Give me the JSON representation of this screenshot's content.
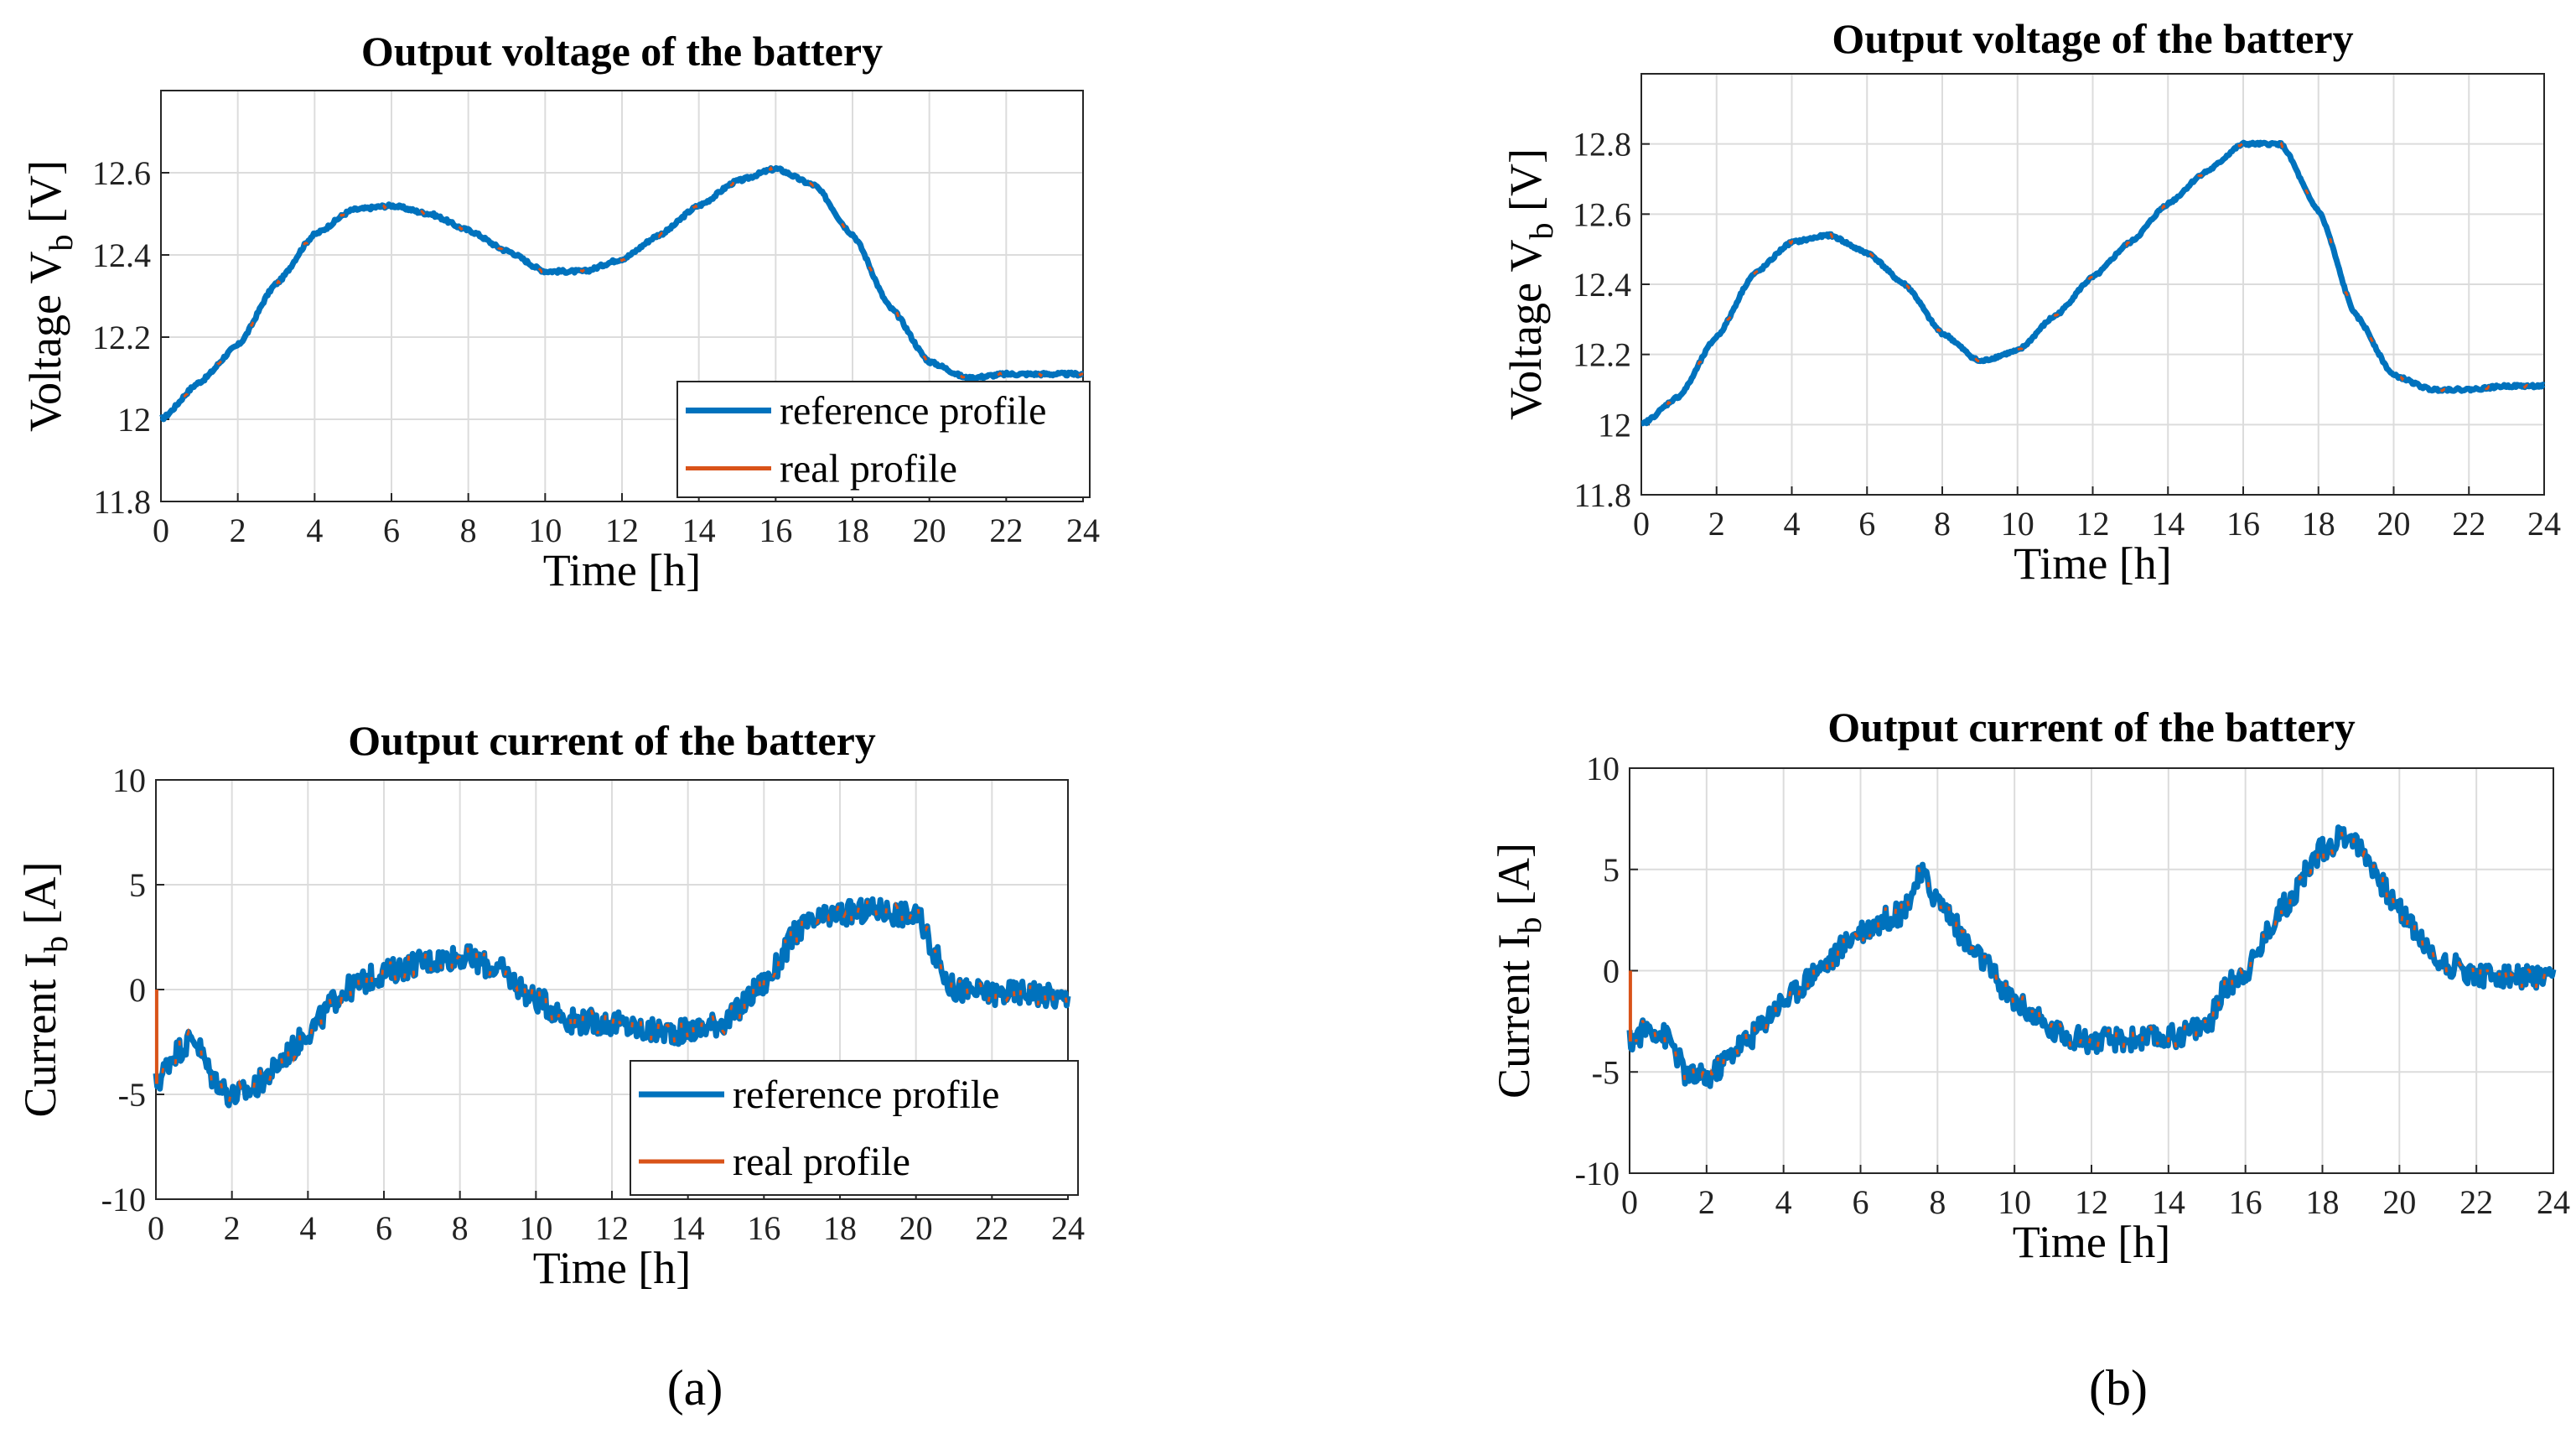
{
  "panels": {
    "a": {
      "label": "(a)"
    },
    "b": {
      "label": "(b)"
    }
  },
  "colors": {
    "reference": "#0072BD",
    "real": "#D95319"
  },
  "chart_data": [
    {
      "id": "a-voltage",
      "type": "line",
      "title": "Output voltage of the battery",
      "xlabel": "Time [h]",
      "ylabel_main": "Voltage V",
      "ylabel_sub": "b",
      "ylabel_unit": " [V]",
      "xlim": [
        0,
        24
      ],
      "ylim": [
        11.8,
        12.8
      ],
      "xticks": [
        0,
        2,
        4,
        6,
        8,
        10,
        12,
        14,
        16,
        18,
        20,
        22,
        24
      ],
      "xtick_labels": [
        "0",
        "2",
        "4",
        "6",
        "8",
        "10",
        "12",
        "14",
        "16",
        "18",
        "20",
        "22",
        "24"
      ],
      "yticks": [
        11.8,
        12,
        12.2,
        12.4,
        12.6
      ],
      "ytick_labels": [
        "11.8",
        "12",
        "12.2",
        "12.4",
        "12.6"
      ],
      "legend": {
        "entries": [
          "reference profile",
          "real profile"
        ],
        "location": "bottom-right"
      },
      "series": [
        {
          "name": "reference profile",
          "noise": 0.004,
          "x": [
            0,
            1,
            2,
            3,
            4,
            5,
            6,
            7,
            8,
            9,
            10,
            11,
            12,
            13,
            14,
            15,
            16,
            17,
            18,
            19,
            20,
            21,
            22,
            23,
            24
          ],
          "y": [
            12.0,
            12.09,
            12.18,
            12.33,
            12.45,
            12.51,
            12.52,
            12.5,
            12.46,
            12.41,
            12.36,
            12.36,
            12.39,
            12.45,
            12.52,
            12.58,
            12.61,
            12.57,
            12.45,
            12.27,
            12.14,
            12.1,
            12.11,
            12.11,
            12.11
          ]
        },
        {
          "name": "real profile",
          "dashed": true,
          "x": [
            0,
            1,
            2,
            3,
            4,
            5,
            6,
            7,
            8,
            9,
            10,
            11,
            12,
            13,
            14,
            15,
            16,
            17,
            18,
            19,
            20,
            21,
            22,
            23,
            24
          ],
          "y": [
            12.0,
            12.09,
            12.18,
            12.33,
            12.45,
            12.51,
            12.52,
            12.5,
            12.46,
            12.41,
            12.36,
            12.36,
            12.39,
            12.45,
            12.52,
            12.58,
            12.61,
            12.57,
            12.45,
            12.27,
            12.14,
            12.1,
            12.11,
            12.11,
            12.11
          ]
        }
      ]
    },
    {
      "id": "a-current",
      "type": "line",
      "title": "Output current of the battery",
      "xlabel": "Time [h]",
      "ylabel_main": "Current I",
      "ylabel_sub": "b",
      "ylabel_unit": " [A]",
      "xlim": [
        0,
        24
      ],
      "ylim": [
        -10,
        10
      ],
      "xticks": [
        0,
        2,
        4,
        6,
        8,
        10,
        12,
        14,
        16,
        18,
        20,
        22,
        24
      ],
      "xtick_labels": [
        "0",
        "2",
        "4",
        "6",
        "8",
        "10",
        "12",
        "14",
        "16",
        "18",
        "20",
        "22",
        "24"
      ],
      "yticks": [
        -10,
        -5,
        0,
        5,
        10
      ],
      "ytick_labels": [
        "-10",
        "-5",
        "0",
        "5",
        "10"
      ],
      "legend": {
        "entries": [
          "reference profile",
          "real profile"
        ],
        "location": "bottom-right"
      },
      "series": [
        {
          "name": "reference profile",
          "noise": 0.6,
          "x": [
            0,
            0.5,
            1,
            1.5,
            2,
            2.5,
            3,
            3.5,
            4,
            5,
            6,
            7,
            8,
            9,
            10,
            11,
            12,
            13,
            14,
            15,
            16,
            17,
            18,
            19,
            20,
            21,
            22,
            23,
            24
          ],
          "y": [
            -4.5,
            -3.0,
            -2.3,
            -4.2,
            -5.1,
            -4.8,
            -4.0,
            -3.0,
            -2.0,
            0.0,
            0.8,
            1.3,
            1.6,
            1.0,
            -0.5,
            -1.5,
            -1.6,
            -2.0,
            -2.0,
            -1.5,
            0.3,
            3.0,
            3.6,
            3.8,
            3.5,
            0.0,
            -0.2,
            -0.1,
            -0.5
          ]
        },
        {
          "name": "real profile",
          "dashed": true,
          "x": [
            0,
            0.5,
            1,
            1.5,
            2,
            2.5,
            3,
            3.5,
            4,
            5,
            6,
            7,
            8,
            9,
            10,
            11,
            12,
            13,
            14,
            15,
            16,
            17,
            18,
            19,
            20,
            21,
            22,
            23,
            24
          ],
          "y": [
            -4.5,
            -3.0,
            -2.3,
            -4.2,
            -5.1,
            -4.8,
            -4.0,
            -3.0,
            -2.0,
            0.0,
            0.8,
            1.3,
            1.6,
            1.0,
            -0.5,
            -1.5,
            -1.6,
            -2.0,
            -2.0,
            -1.5,
            0.3,
            3.0,
            3.6,
            3.8,
            3.5,
            0.0,
            -0.2,
            -0.1,
            -0.5
          ]
        }
      ]
    },
    {
      "id": "b-voltage",
      "type": "line",
      "title": "Output voltage of the battery",
      "xlabel": "Time [h]",
      "ylabel_main": "Voltage V",
      "ylabel_sub": "b",
      "ylabel_unit": " [V]",
      "xlim": [
        0,
        24
      ],
      "ylim": [
        11.8,
        13.0
      ],
      "xticks": [
        0,
        2,
        4,
        6,
        8,
        10,
        12,
        14,
        16,
        18,
        20,
        22,
        24
      ],
      "xtick_labels": [
        "0",
        "2",
        "4",
        "6",
        "8",
        "10",
        "12",
        "14",
        "16",
        "18",
        "20",
        "22",
        "24"
      ],
      "yticks": [
        11.8,
        12,
        12.2,
        12.4,
        12.6,
        12.8
      ],
      "ytick_labels": [
        "11.8",
        "12",
        "12.2",
        "12.4",
        "12.6",
        "12.8"
      ],
      "legend": null,
      "series": [
        {
          "name": "reference profile",
          "noise": 0.004,
          "x": [
            0,
            1,
            2,
            3,
            4,
            5,
            6,
            7,
            8,
            9,
            10,
            11,
            12,
            13,
            14,
            15,
            16,
            17,
            18,
            19,
            20,
            21,
            22,
            23,
            24
          ],
          "y": [
            12.0,
            12.08,
            12.25,
            12.43,
            12.52,
            12.54,
            12.49,
            12.4,
            12.26,
            12.18,
            12.21,
            12.31,
            12.42,
            12.52,
            12.63,
            12.72,
            12.8,
            12.8,
            12.61,
            12.31,
            12.14,
            12.1,
            12.1,
            12.11,
            12.11
          ]
        },
        {
          "name": "real profile",
          "dashed": true,
          "x": [
            0,
            1,
            2,
            3,
            4,
            5,
            6,
            7,
            8,
            9,
            10,
            11,
            12,
            13,
            14,
            15,
            16,
            17,
            18,
            19,
            20,
            21,
            22,
            23,
            24
          ],
          "y": [
            12.0,
            12.08,
            12.25,
            12.43,
            12.52,
            12.54,
            12.49,
            12.4,
            12.26,
            12.18,
            12.21,
            12.31,
            12.42,
            12.52,
            12.63,
            12.72,
            12.8,
            12.8,
            12.61,
            12.31,
            12.14,
            12.1,
            12.1,
            12.11,
            12.11
          ]
        }
      ]
    },
    {
      "id": "b-current",
      "type": "line",
      "title": "Output current of the battery",
      "xlabel": "Time [h]",
      "ylabel_main": "Current I",
      "ylabel_sub": "b",
      "ylabel_unit": " [A]",
      "xlim": [
        0,
        24
      ],
      "ylim": [
        -10,
        10
      ],
      "xticks": [
        0,
        2,
        4,
        6,
        8,
        10,
        12,
        14,
        16,
        18,
        20,
        22,
        24
      ],
      "xtick_labels": [
        "0",
        "2",
        "4",
        "6",
        "8",
        "10",
        "12",
        "14",
        "16",
        "18",
        "20",
        "22",
        "24"
      ],
      "yticks": [
        -10,
        -5,
        0,
        5,
        10
      ],
      "ytick_labels": [
        "-10",
        "-5",
        "0",
        "5",
        "10"
      ],
      "legend": null,
      "series": [
        {
          "name": "reference profile",
          "noise": 0.6,
          "x": [
            0,
            0.5,
            1,
            1.5,
            2,
            3,
            4,
            5,
            6,
            7,
            7.6,
            8,
            9,
            10,
            11,
            12,
            13,
            14,
            15,
            15.5,
            16,
            17,
            18,
            18.7,
            19,
            20,
            21,
            22,
            23,
            24
          ],
          "y": [
            -3.5,
            -2.8,
            -3.3,
            -5.2,
            -5.3,
            -3.5,
            -1.5,
            0.2,
            2.0,
            2.8,
            4.7,
            3.5,
            0.8,
            -1.5,
            -3.0,
            -3.5,
            -3.4,
            -3.3,
            -2.7,
            -0.8,
            0.0,
            3.2,
            6.0,
            6.8,
            6.0,
            3.0,
            0.5,
            -0.2,
            -0.3,
            -0.5
          ]
        },
        {
          "name": "real profile",
          "dashed": true,
          "x": [
            0,
            0.5,
            1,
            1.5,
            2,
            3,
            4,
            5,
            6,
            7,
            7.6,
            8,
            9,
            10,
            11,
            12,
            13,
            14,
            15,
            15.5,
            16,
            17,
            18,
            18.7,
            19,
            20,
            21,
            22,
            23,
            24
          ],
          "y": [
            -3.5,
            -2.8,
            -3.3,
            -5.2,
            -5.3,
            -3.5,
            -1.5,
            0.2,
            2.0,
            2.8,
            4.7,
            3.5,
            0.8,
            -1.5,
            -3.0,
            -3.5,
            -3.4,
            -3.3,
            -2.7,
            -0.8,
            0.0,
            3.2,
            6.0,
            6.8,
            6.0,
            3.0,
            0.5,
            -0.2,
            -0.3,
            -0.5
          ]
        }
      ]
    }
  ]
}
